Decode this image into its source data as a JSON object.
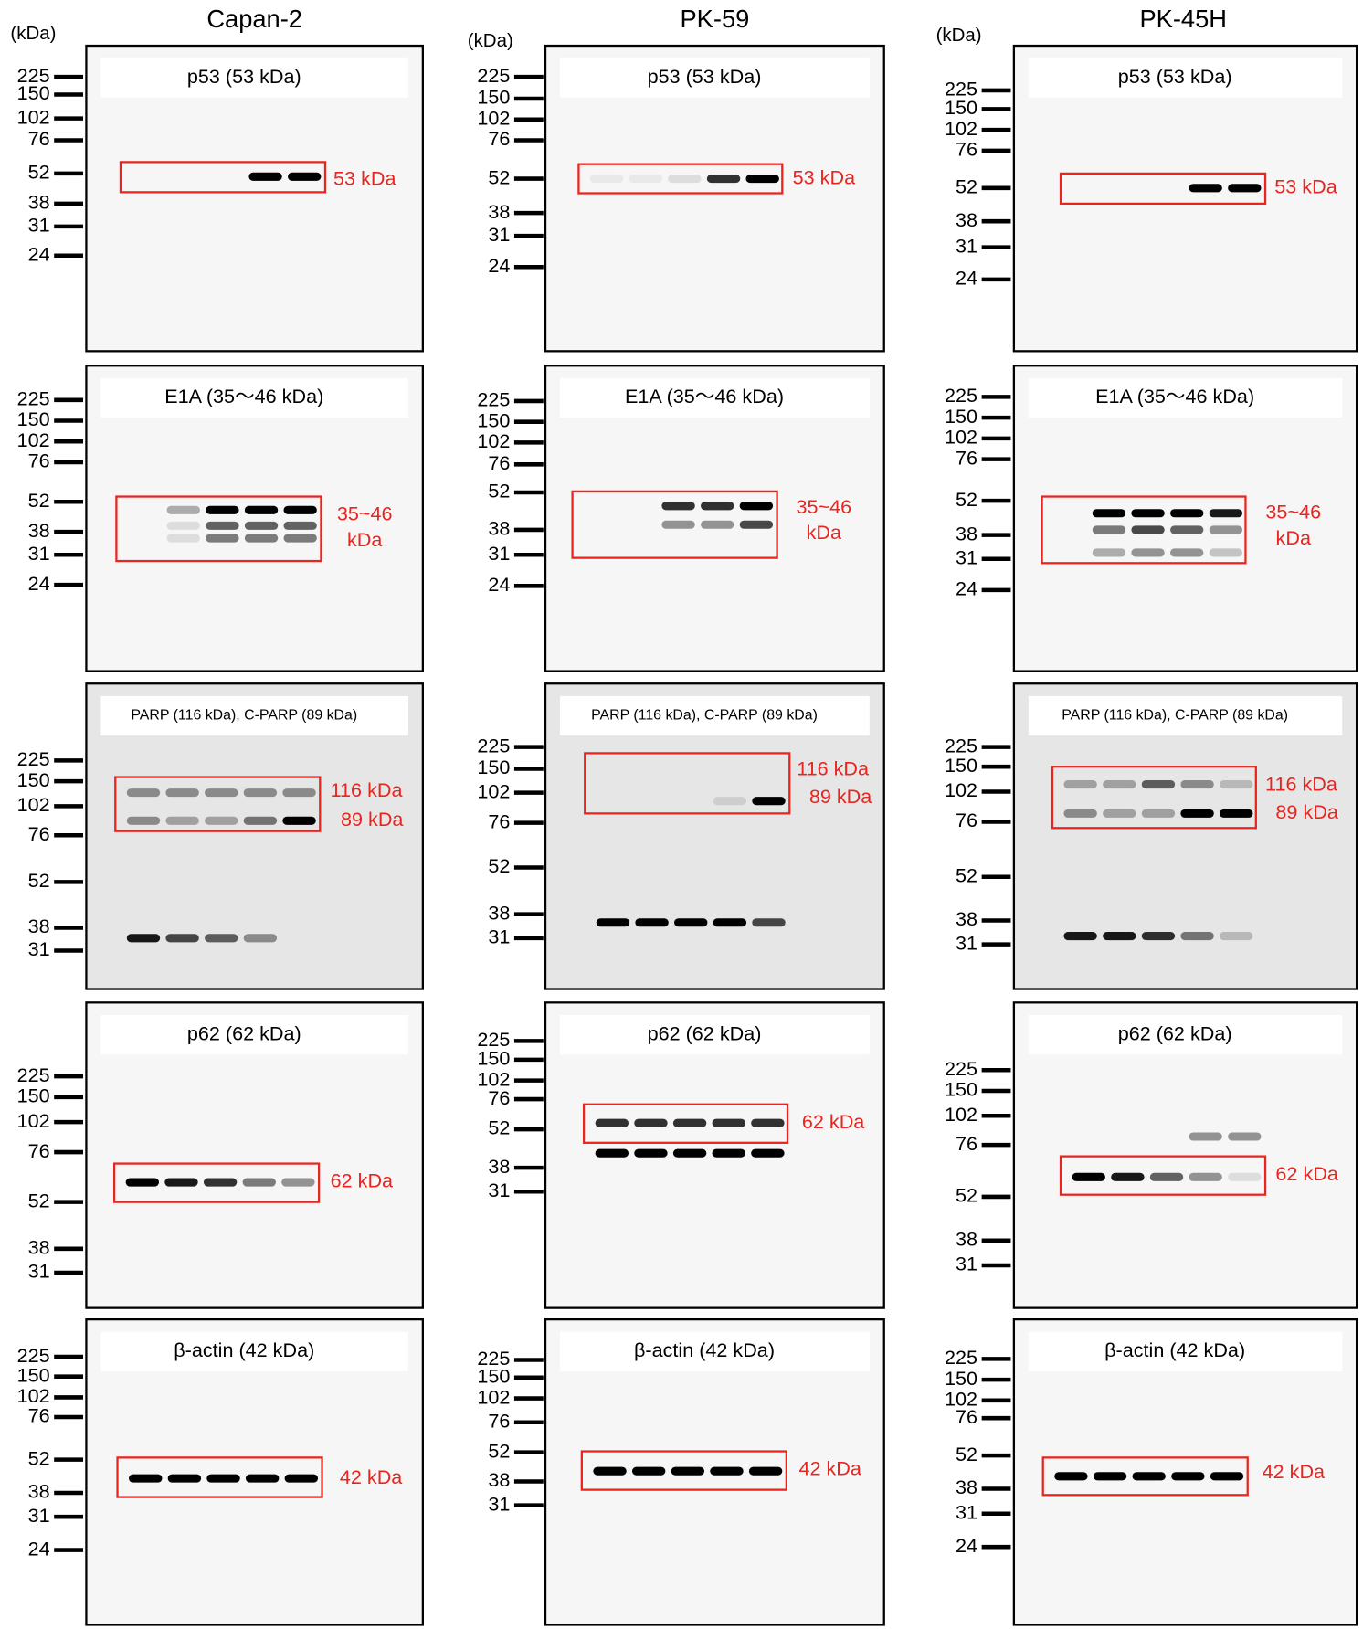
{
  "columns": [
    {
      "title": "Capan-2",
      "unit": "(kDa)",
      "panels": [
        {
          "label": "p53 (53 kDa)",
          "markers": [
            225,
            150,
            102,
            76,
            52,
            38,
            31,
            24
          ],
          "annotation": [
            "53 kDa"
          ]
        },
        {
          "label": "E1A (35～46 kDa)",
          "markers": [
            225,
            150,
            102,
            76,
            52,
            38,
            31,
            24
          ],
          "annotation": [
            "35~46",
            "kDa"
          ]
        },
        {
          "label": "PARP (116 kDa), C-PARP (89 kDa)",
          "markers": [
            225,
            150,
            102,
            76,
            52,
            38,
            31
          ],
          "annotation": [
            "116 kDa",
            "89 kDa"
          ]
        },
        {
          "label": "p62 (62 kDa)",
          "markers": [
            225,
            150,
            102,
            76,
            52,
            38,
            31
          ],
          "annotation": [
            "62 kDa"
          ]
        },
        {
          "label": "β-actin (42 kDa)",
          "markers": [
            225,
            150,
            102,
            76,
            52,
            38,
            31,
            24
          ],
          "annotation": [
            "42 kDa"
          ]
        }
      ]
    },
    {
      "title": "PK-59",
      "unit": "(kDa)",
      "panels": [
        {
          "label": "p53 (53 kDa)",
          "markers": [
            225,
            150,
            102,
            76,
            52,
            38,
            31,
            24
          ],
          "annotation": [
            "53 kDa"
          ]
        },
        {
          "label": "E1A (35～46 kDa)",
          "markers": [
            225,
            150,
            102,
            76,
            52,
            38,
            31,
            24
          ],
          "annotation": [
            "35~46",
            "kDa"
          ]
        },
        {
          "label": "PARP (116 kDa), C-PARP (89 kDa)",
          "markers": [
            225,
            150,
            102,
            76,
            52,
            38,
            31
          ],
          "annotation": [
            "116 kDa",
            "89 kDa"
          ]
        },
        {
          "label": "p62 (62 kDa)",
          "markers": [
            225,
            150,
            102,
            76,
            52,
            38,
            31
          ],
          "annotation": [
            "62 kDa"
          ]
        },
        {
          "label": "β-actin (42 kDa)",
          "markers": [
            225,
            150,
            102,
            76,
            52,
            38,
            31
          ],
          "annotation": [
            "42 kDa"
          ]
        }
      ]
    },
    {
      "title": "PK-45H",
      "unit": "(kDa)",
      "panels": [
        {
          "label": "p53 (53 kDa)",
          "markers": [
            225,
            150,
            102,
            76,
            52,
            38,
            31,
            24
          ],
          "annotation": [
            "53 kDa"
          ]
        },
        {
          "label": "E1A (35～46 kDa)",
          "markers": [
            225,
            150,
            102,
            76,
            52,
            38,
            31,
            24
          ],
          "annotation": [
            "35~46",
            "kDa"
          ]
        },
        {
          "label": "PARP (116 kDa), C-PARP (89 kDa)",
          "markers": [
            225,
            150,
            102,
            76,
            52,
            38,
            31
          ],
          "annotation": [
            "116 kDa",
            "89 kDa"
          ]
        },
        {
          "label": "p62 (62 kDa)",
          "markers": [
            225,
            150,
            102,
            76,
            52,
            38,
            31
          ],
          "annotation": [
            "62 kDa"
          ]
        },
        {
          "label": "β-actin (42 kDa)",
          "markers": [
            225,
            150,
            102,
            76,
            52,
            38,
            31,
            24
          ],
          "annotation": [
            "42 kDa"
          ]
        }
      ]
    }
  ]
}
